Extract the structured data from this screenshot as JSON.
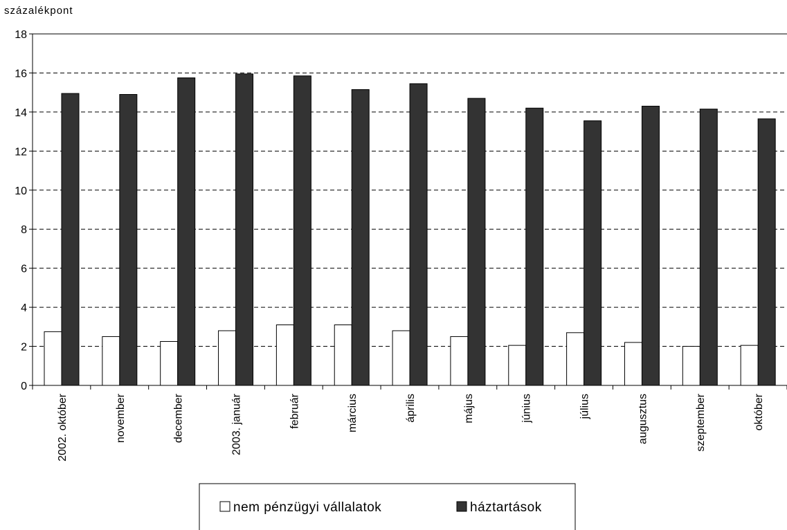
{
  "chart_data": {
    "type": "bar",
    "unit_label": "százalékpont",
    "title": "",
    "xlabel": "",
    "ylabel": "",
    "ylim": [
      0,
      18
    ],
    "yticks": [
      0,
      2,
      4,
      6,
      8,
      10,
      12,
      14,
      16,
      18
    ],
    "grid": "horizontal-dashed",
    "legend_position": "bottom",
    "categories": [
      "2002. október",
      "november",
      "december",
      "2003. január",
      "február",
      "március",
      "április",
      "május",
      "június",
      "július",
      "augusztus",
      "szeptember",
      "október"
    ],
    "series": [
      {
        "name": "nem pénzügyi vállalatok",
        "color": "#ffffff",
        "values": [
          2.75,
          2.5,
          2.25,
          2.8,
          3.1,
          3.1,
          2.8,
          2.5,
          2.05,
          2.7,
          2.2,
          2.0,
          2.05
        ]
      },
      {
        "name": "háztartások",
        "color": "#333333",
        "values": [
          14.95,
          14.9,
          15.75,
          15.95,
          15.85,
          15.15,
          15.45,
          14.7,
          14.2,
          13.55,
          14.3,
          14.15,
          13.65
        ]
      }
    ]
  }
}
